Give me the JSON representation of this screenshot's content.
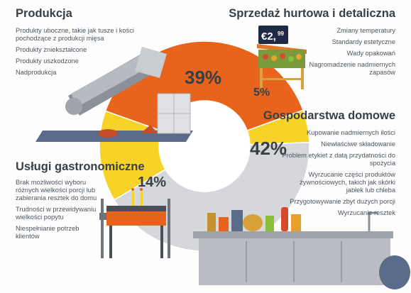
{
  "colors": {
    "orange": "#e8641c",
    "yellow": "#f5d328",
    "gray": "#d5d7da",
    "text": "#3a3f46",
    "price_tag": "#1f2a44"
  },
  "chart_data": {
    "type": "pie",
    "variant": "donut",
    "title": "",
    "slices": [
      {
        "label": "Produkcja",
        "value": 39,
        "value_label": "39%",
        "color": "#e8641c"
      },
      {
        "label": "Sprzedaż hurtowa i detaliczna",
        "value": 5,
        "value_label": "5%",
        "color": "#f5d328"
      },
      {
        "label": "Gospodarstwa domowe",
        "value": 42,
        "value_label": "42%",
        "color": "#d5d7da"
      },
      {
        "label": "Usługi gastronomiczne",
        "value": 14,
        "value_label": "14%",
        "color": "#f5d328"
      }
    ]
  },
  "sections": {
    "production": {
      "title": "Produkcja",
      "items": [
        "Produkty uboczne, takie jak tusze i kości pochodzące z produkcji mięsa",
        "Produkty zniekształcone",
        "Produkty uszkodzone",
        "Nadprodukcja"
      ]
    },
    "retail": {
      "title": "Sprzedaż hurtowa i detaliczna",
      "items": [
        "Zmiany temperatury",
        "Standardy estetyczne",
        "Wady opakowań",
        "Nagromadzenie nadmiernych zapasów"
      ]
    },
    "households": {
      "title": "Gospodarstwa domowe",
      "items": [
        "Kupowanie nadmiernych ilości",
        "Niewłaściwe składowanie",
        "Problem etykiet z datą przydatności do spożycia",
        "Wyrzucanie części produktów żywnościowych, takich jak skórki jabłek lub chleba",
        "Przygotowywanie zbyt dużych porcji",
        "Wyrzucanie resztek"
      ]
    },
    "catering": {
      "title": "Usługi gastronomiczne",
      "items": [
        "Brak możliwości wyboru różnych wielkości porcji lub zabierania resztek do domu",
        "Trudności w przewidywaniu wielkości popytu",
        "Niespełnianie potrzeb klientów"
      ]
    }
  },
  "price_tag": {
    "main": "€2,",
    "cents": "99"
  }
}
